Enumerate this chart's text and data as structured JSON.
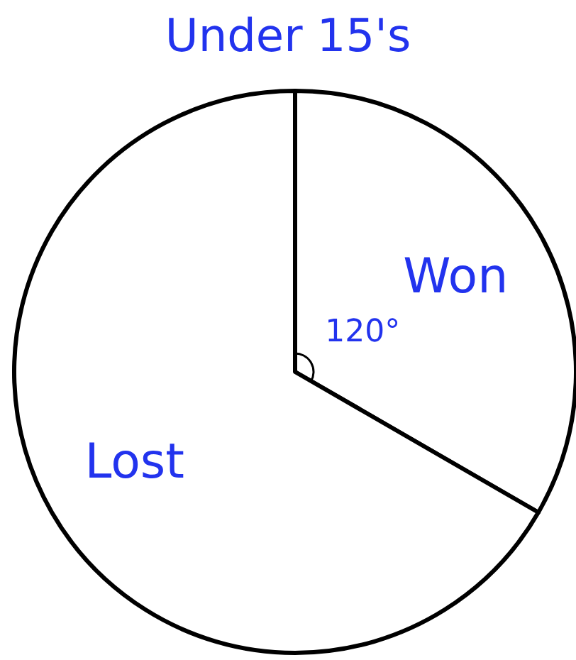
{
  "chart_data": {
    "type": "pie",
    "title": "Under 15's",
    "categories": [
      "Won",
      "Lost"
    ],
    "values": [
      120,
      240
    ],
    "colors": [
      "#ffffff",
      "#ffffff"
    ],
    "value_labels": [
      "120°",
      null
    ]
  }
}
